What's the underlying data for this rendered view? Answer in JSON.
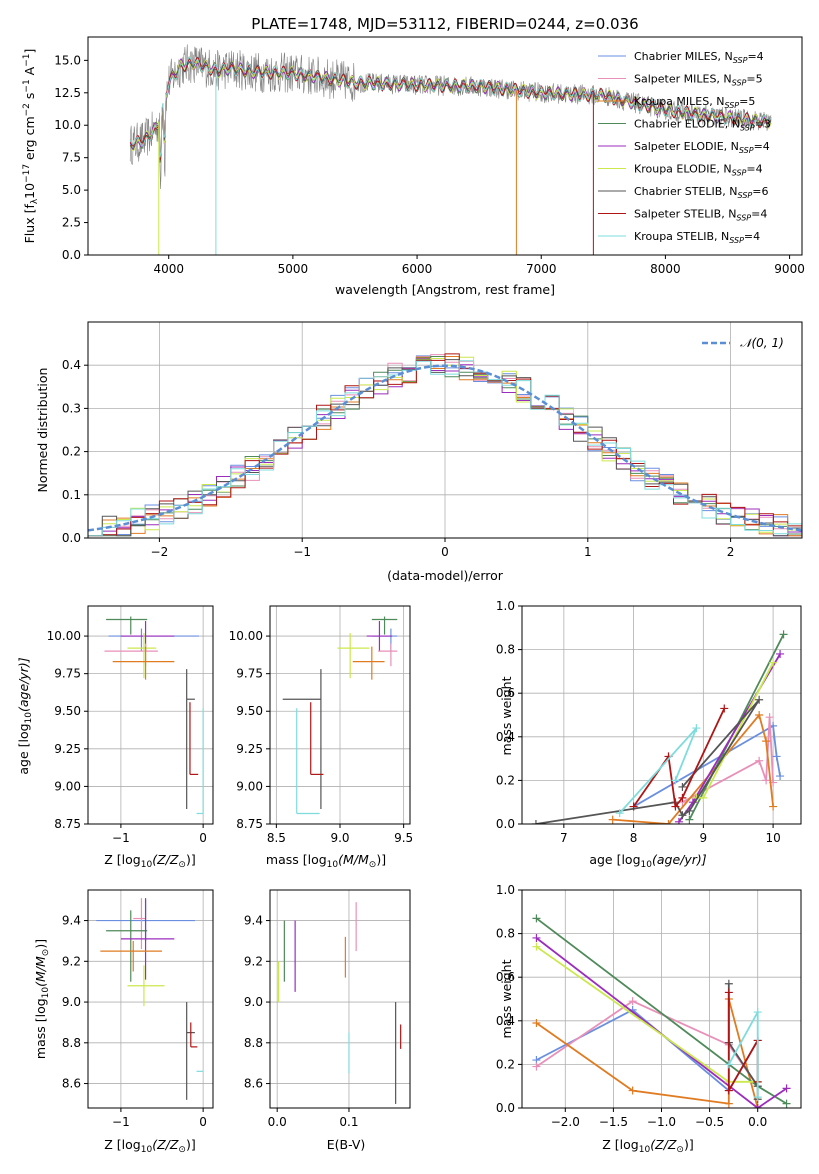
{
  "colors": {
    "chabrier_miles": "#6a8fe0",
    "salpeter_miles": "#e890b8",
    "kroupa_miles": "#e07b22",
    "chabrier_elodie": "#4f8a5a",
    "salpeter_elodie": "#9b2cbd",
    "kroupa_elodie": "#cbe84c",
    "chabrier_stelib": "#555555",
    "salpeter_stelib": "#b01515",
    "kroupa_stelib": "#7edcdc"
  },
  "legend_entries": [
    {
      "key": "chabrier_miles",
      "base": "Chabrier MILES, N",
      "sub": "SSP",
      "tail": "=4"
    },
    {
      "key": "salpeter_miles",
      "base": "Salpeter MILES, N",
      "sub": "SSP",
      "tail": "=5"
    },
    {
      "key": "kroupa_miles",
      "base": "Kroupa MILES, N",
      "sub": "SSP",
      "tail": "=5"
    },
    {
      "key": "chabrier_elodie",
      "base": "Chabrier ELODIE, N",
      "sub": "SSP",
      "tail": "=3"
    },
    {
      "key": "salpeter_elodie",
      "base": "Salpeter ELODIE, N",
      "sub": "SSP",
      "tail": "=4"
    },
    {
      "key": "kroupa_elodie",
      "base": "Kroupa ELODIE, N",
      "sub": "SSP",
      "tail": "=4"
    },
    {
      "key": "chabrier_stelib",
      "base": "Chabrier STELIB, N",
      "sub": "SSP",
      "tail": "=6"
    },
    {
      "key": "salpeter_stelib",
      "base": "Salpeter STELIB, N",
      "sub": "SSP",
      "tail": "=4"
    },
    {
      "key": "kroupa_stelib",
      "base": "Kroupa STELIB, N",
      "sub": "SSP",
      "tail": "=4"
    }
  ],
  "chart_data": [
    {
      "id": "spectrum",
      "type": "line",
      "title": "PLATE=1748, MJD=53112, FIBERID=0244, z=0.036",
      "xlabel": "wavelength [Angstrom, rest frame]",
      "ylabel_base": "Flux [f",
      "ylabel_sub": "λ",
      "ylabel_mid": "10",
      "ylabel_sup": "−17",
      "ylabel_tail": " erg cm",
      "ylabel_sup2": "−2",
      "ylabel_tail2": " s",
      "ylabel_sup3": "−1",
      "ylabel_tail3": " A",
      "ylabel_sup4": "−1",
      "ylabel_end": "]",
      "xlim": [
        3350,
        9100
      ],
      "ylim": [
        0,
        16.8
      ],
      "xticks": [
        "4000",
        "5000",
        "6000",
        "7000",
        "8000",
        "9000"
      ],
      "yticks": [
        "0.0",
        "2.5",
        "5.0",
        "7.5",
        "10.0",
        "12.5",
        "15.0"
      ],
      "continuum": {
        "x": [
          3690,
          3800,
          3900,
          3950,
          4000,
          4100,
          4200,
          4300,
          4400,
          4500,
          4700,
          5000,
          5500,
          6000,
          6500,
          6800,
          7000,
          7500,
          7800,
          8000,
          8200,
          8500,
          8800
        ],
        "y": [
          8.5,
          8.8,
          9.8,
          11.0,
          13.3,
          14.6,
          14.8,
          14.5,
          14.2,
          14.4,
          14.1,
          14.0,
          13.3,
          13.1,
          13.0,
          12.7,
          12.5,
          12.3,
          11.6,
          11.2,
          10.9,
          10.6,
          10.3
        ]
      }
    },
    {
      "id": "residuals",
      "type": "histogram",
      "xlabel": "(data-model)/error",
      "ylabel": "Normed distribution",
      "xlim": [
        -2.5,
        2.5
      ],
      "ylim": [
        0,
        0.5
      ],
      "xticks": [
        "−2",
        "−1",
        "0",
        "1",
        "2"
      ],
      "yticks": [
        "0.0",
        "0.1",
        "0.2",
        "0.3",
        "0.4"
      ],
      "legend": "𝒩(0, 1)"
    },
    {
      "id": "age_vs_Z",
      "type": "errorbar",
      "xlabel_base": "Z [log",
      "xlabel_sub": "10",
      "xlabel_tail": "(Z/Z",
      "xlabel_sub2": "⊙",
      "xlabel_end": ")]",
      "ylabel_base": "age  [log",
      "ylabel_sub": "10",
      "ylabel_tail": "(age/yr)]",
      "xlim": [
        -1.4,
        0.12
      ],
      "ylim": [
        8.75,
        10.2
      ],
      "xticks": [
        "−1",
        "0"
      ],
      "yticks": [
        "8.75",
        "9.00",
        "9.25",
        "9.50",
        "9.75",
        "10.00"
      ],
      "points": [
        {
          "key": "chabrier_elodie",
          "x": -0.88,
          "xerr": [
            0.3,
            0.2
          ],
          "y": 10.11,
          "yerr": [
            0.1,
            0.02
          ]
        },
        {
          "key": "chabrier_miles",
          "x": -0.75,
          "xerr": [
            0.4,
            0.7
          ],
          "y": 10.0,
          "yerr": [
            0.1,
            0.05
          ]
        },
        {
          "key": "salpeter_elodie",
          "x": -0.7,
          "xerr": [
            0.3,
            0.35
          ],
          "y": 10.0,
          "yerr": [
            0.1,
            0.1
          ]
        },
        {
          "key": "salpeter_miles",
          "x": -0.7,
          "xerr": [
            0.5,
            0.15
          ],
          "y": 9.9,
          "yerr": [
            0.1,
            0.05
          ]
        },
        {
          "key": "kroupa_elodie",
          "x": -0.72,
          "xerr": [
            0.2,
            0.15
          ],
          "y": 9.92,
          "yerr": [
            0.2,
            0.1
          ]
        },
        {
          "key": "kroupa_miles",
          "x": -0.7,
          "xerr": [
            0.4,
            0.35
          ],
          "y": 9.83,
          "yerr": [
            0.12,
            0.1
          ]
        },
        {
          "key": "chabrier_stelib",
          "x": -0.2,
          "xerr": [
            0.0,
            0.1
          ],
          "y": 9.58,
          "yerr": [
            0.73,
            0.2
          ]
        },
        {
          "key": "salpeter_stelib",
          "x": -0.16,
          "xerr": [
            0.0,
            0.1
          ],
          "y": 9.08,
          "yerr": [
            0.0,
            0.48
          ]
        },
        {
          "key": "kroupa_stelib",
          "x": 0.0,
          "xerr": [
            0.08,
            0.0
          ],
          "y": 8.82,
          "yerr": [
            0.0,
            0.7
          ]
        }
      ]
    },
    {
      "id": "age_vs_mass",
      "type": "errorbar",
      "xlabel_base": "mass [log",
      "xlabel_sub": "10",
      "xlabel_tail": "(M/M",
      "xlabel_sub2": "⊙",
      "xlabel_end": ")]",
      "xlim": [
        8.45,
        9.55
      ],
      "ylim": [
        8.75,
        10.2
      ],
      "xticks": [
        "8.5",
        "9.0",
        "9.5"
      ],
      "yticks": [
        "8.75",
        "9.00",
        "9.25",
        "9.50",
        "9.75",
        "10.00"
      ],
      "points": [
        {
          "key": "chabrier_elodie",
          "x": 9.35,
          "xerr": [
            0.1,
            0.1
          ],
          "y": 10.11,
          "yerr": [
            0.1,
            0.02
          ]
        },
        {
          "key": "chabrier_miles",
          "x": 9.4,
          "xerr": [
            0.15,
            0.05
          ],
          "y": 10.0,
          "yerr": [
            0.1,
            0.05
          ]
        },
        {
          "key": "salpeter_elodie",
          "x": 9.31,
          "xerr": [
            0.1,
            0.1
          ],
          "y": 10.0,
          "yerr": [
            0.1,
            0.1
          ]
        },
        {
          "key": "salpeter_miles",
          "x": 9.4,
          "xerr": [
            0.1,
            0.05
          ],
          "y": 9.9,
          "yerr": [
            0.1,
            0.05
          ]
        },
        {
          "key": "kroupa_elodie",
          "x": 9.08,
          "xerr": [
            0.1,
            0.15
          ],
          "y": 9.92,
          "yerr": [
            0.2,
            0.1
          ]
        },
        {
          "key": "kroupa_miles",
          "x": 9.25,
          "xerr": [
            0.15,
            0.1
          ],
          "y": 9.83,
          "yerr": [
            0.12,
            0.1
          ]
        },
        {
          "key": "chabrier_stelib",
          "x": 8.85,
          "xerr": [
            0.3,
            0.0
          ],
          "y": 9.58,
          "yerr": [
            0.73,
            0.2
          ]
        },
        {
          "key": "salpeter_stelib",
          "x": 8.77,
          "xerr": [
            0.0,
            0.1
          ],
          "y": 9.08,
          "yerr": [
            0.0,
            0.48
          ]
        },
        {
          "key": "kroupa_stelib",
          "x": 8.66,
          "xerr": [
            0.0,
            0.18
          ],
          "y": 8.82,
          "yerr": [
            0.0,
            0.7
          ]
        }
      ]
    },
    {
      "id": "weight_vs_age",
      "type": "line",
      "xlabel_base": "age  [log",
      "xlabel_sub": "10",
      "xlabel_tail": "(age/yr)]",
      "ylabel": "mass weight",
      "xlim": [
        6.4,
        10.4
      ],
      "ylim": [
        0,
        1.0
      ],
      "xticks": [
        "7",
        "8",
        "9",
        "10"
      ],
      "yticks": [
        "0.0",
        "0.2",
        "0.4",
        "0.6",
        "0.8",
        "1.0"
      ],
      "series": [
        {
          "key": "chabrier_miles",
          "x": [
            8.0,
            10.0,
            10.05,
            10.1
          ],
          "y": [
            0.08,
            0.45,
            0.31,
            0.22
          ]
        },
        {
          "key": "salpeter_miles",
          "x": [
            8.7,
            9.8,
            9.9,
            9.95,
            10.0
          ],
          "y": [
            0.1,
            0.29,
            0.2,
            0.49,
            0.19
          ]
        },
        {
          "key": "kroupa_miles",
          "x": [
            7.7,
            8.5,
            9.8,
            9.9,
            10.0
          ],
          "y": [
            0.02,
            0.0,
            0.5,
            0.38,
            0.08
          ]
        },
        {
          "key": "chabrier_elodie",
          "x": [
            8.8,
            10.15
          ],
          "y": [
            0.02,
            0.87
          ]
        },
        {
          "key": "salpeter_elodie",
          "x": [
            8.65,
            8.85,
            10.1
          ],
          "y": [
            0.01,
            0.1,
            0.78
          ]
        },
        {
          "key": "kroupa_elodie",
          "x": [
            8.9,
            9.0,
            10.0
          ],
          "y": [
            0.12,
            0.12,
            0.74
          ]
        },
        {
          "key": "chabrier_stelib",
          "x": [
            6.6,
            8.6,
            8.7,
            8.8,
            9.8,
            8.7
          ],
          "y": [
            0.0,
            0.1,
            0.04,
            0.06,
            0.57,
            0.17
          ]
        },
        {
          "key": "salpeter_stelib",
          "x": [
            8.0,
            8.5,
            8.6,
            8.7,
            9.3
          ],
          "y": [
            0.08,
            0.31,
            0.08,
            0.12,
            0.53
          ]
        },
        {
          "key": "kroupa_stelib",
          "x": [
            7.8,
            8.9,
            8.6
          ],
          "y": [
            0.05,
            0.44,
            0.2
          ]
        }
      ]
    },
    {
      "id": "mass_vs_Z",
      "type": "errorbar",
      "xlabel_base": "Z [log",
      "xlabel_sub": "10",
      "xlabel_tail": "(Z/Z",
      "xlabel_sub2": "⊙",
      "xlabel_end": ")]",
      "ylabel_base": "mass [log",
      "ylabel_sub": "10",
      "ylabel_tail": "(M/M",
      "ylabel_sub2": "⊙",
      "ylabel_end": ")]",
      "xlim": [
        -1.4,
        0.12
      ],
      "ylim": [
        8.48,
        9.55
      ],
      "xticks": [
        "−1",
        "0"
      ],
      "yticks": [
        "8.6",
        "8.8",
        "9.0",
        "9.2",
        "9.4"
      ],
      "points": [
        {
          "key": "chabrier_miles",
          "x": -0.7,
          "xerr": [
            0.6,
            0.6
          ],
          "y": 9.4,
          "yerr": [
            0.1,
            0.1
          ]
        },
        {
          "key": "salpeter_miles",
          "x": -0.75,
          "xerr": [
            0.1,
            0.05
          ],
          "y": 9.41,
          "yerr": [
            0.15,
            0.1
          ]
        },
        {
          "key": "chabrier_elodie",
          "x": -0.88,
          "xerr": [
            0.3,
            0.2
          ],
          "y": 9.35,
          "yerr": [
            0.25,
            0.1
          ]
        },
        {
          "key": "salpeter_elodie",
          "x": -0.7,
          "xerr": [
            0.3,
            0.35
          ],
          "y": 9.31,
          "yerr": [
            0.2,
            0.2
          ]
        },
        {
          "key": "kroupa_miles",
          "x": -0.85,
          "xerr": [
            0.4,
            0.35
          ],
          "y": 9.25,
          "yerr": [
            0.1,
            0.05
          ]
        },
        {
          "key": "kroupa_elodie",
          "x": -0.72,
          "xerr": [
            0.2,
            0.25
          ],
          "y": 9.08,
          "yerr": [
            0.1,
            0.1
          ]
        },
        {
          "key": "chabrier_stelib",
          "x": -0.2,
          "xerr": [
            0.0,
            0.1
          ],
          "y": 8.85,
          "yerr": [
            0.33,
            0.15
          ]
        },
        {
          "key": "salpeter_stelib",
          "x": -0.15,
          "xerr": [
            0.0,
            0.08
          ],
          "y": 8.78,
          "yerr": [
            0.0,
            0.12
          ]
        },
        {
          "key": "kroupa_stelib",
          "x": 0.0,
          "xerr": [
            0.08,
            0.0
          ],
          "y": 8.66,
          "yerr": [
            0.0,
            0.0
          ]
        }
      ]
    },
    {
      "id": "mass_vs_ebv",
      "type": "errorbar",
      "xlabel": "E(B-V)",
      "xlim": [
        -0.01,
        0.185
      ],
      "ylim": [
        8.48,
        9.55
      ],
      "xticks": [
        "0.0",
        "0.1"
      ],
      "yticks": [
        "8.6",
        "8.8",
        "9.0",
        "9.2",
        "9.4"
      ],
      "points": [
        {
          "key": "kroupa_elodie",
          "x": 0.002,
          "y": 9.15,
          "yerr": [
            0.15,
            0.05
          ]
        },
        {
          "key": "chabrier_elodie",
          "x": 0.01,
          "y": 9.25,
          "yerr": [
            0.15,
            0.15
          ]
        },
        {
          "key": "salpeter_elodie",
          "x": 0.025,
          "y": 9.2,
          "yerr": [
            0.15,
            0.2
          ]
        },
        {
          "key": "kroupa_miles",
          "x": 0.095,
          "y": 9.22,
          "yerr": [
            0.1,
            0.1
          ]
        },
        {
          "key": "salpeter_miles",
          "x": 0.11,
          "y": 9.37,
          "yerr": [
            0.12,
            0.12
          ]
        },
        {
          "key": "kroupa_stelib",
          "x": 0.1,
          "y": 8.75,
          "yerr": [
            0.1,
            0.1
          ]
        },
        {
          "key": "chabrier_stelib",
          "x": 0.165,
          "y": 8.75,
          "yerr": [
            0.25,
            0.25
          ]
        },
        {
          "key": "salpeter_stelib",
          "x": 0.172,
          "y": 8.83,
          "yerr": [
            0.06,
            0.06
          ]
        }
      ]
    },
    {
      "id": "weight_vs_Z",
      "type": "line",
      "xlabel_base": "Z [log",
      "xlabel_sub": "10",
      "xlabel_tail": "(Z/Z",
      "xlabel_sub2": "⊙",
      "xlabel_end": ")]",
      "ylabel": "mass weight",
      "xlim": [
        -2.45,
        0.45
      ],
      "ylim": [
        0,
        1.0
      ],
      "xticks": [
        "−2.0",
        "−1.5",
        "−1.0",
        "−0.5",
        "0.0"
      ],
      "yticks": [
        "0.0",
        "0.2",
        "0.4",
        "0.6",
        "0.8",
        "1.0"
      ],
      "series": [
        {
          "key": "chabrier_miles",
          "x": [
            -2.3,
            -1.3,
            -0.3,
            0.0
          ],
          "y": [
            0.22,
            0.45,
            0.08,
            0.31
          ]
        },
        {
          "key": "salpeter_miles",
          "x": [
            -2.3,
            -1.3,
            -0.3,
            0.0
          ],
          "y": [
            0.19,
            0.49,
            0.29,
            0.1
          ]
        },
        {
          "key": "kroupa_miles",
          "x": [
            -2.3,
            -1.3,
            -0.3,
            -0.3,
            0.0
          ],
          "y": [
            0.39,
            0.08,
            0.02,
            0.5,
            0.0
          ]
        },
        {
          "key": "chabrier_elodie",
          "x": [
            -2.3,
            0.0,
            0.3
          ],
          "y": [
            0.87,
            0.1,
            0.02
          ]
        },
        {
          "key": "salpeter_elodie",
          "x": [
            -2.3,
            0.0,
            0.3
          ],
          "y": [
            0.78,
            0.0,
            0.09
          ]
        },
        {
          "key": "kroupa_elodie",
          "x": [
            -2.3,
            -0.3,
            0.0
          ],
          "y": [
            0.74,
            0.12,
            0.12
          ]
        },
        {
          "key": "chabrier_stelib",
          "x": [
            -0.3,
            -0.3,
            0.0,
            0.0
          ],
          "y": [
            0.57,
            0.3,
            0.1,
            0.04
          ]
        },
        {
          "key": "salpeter_stelib",
          "x": [
            -0.3,
            -0.3,
            0.0,
            0.0
          ],
          "y": [
            0.53,
            0.08,
            0.31,
            0.12
          ]
        },
        {
          "key": "kroupa_stelib",
          "x": [
            -0.3,
            0.0,
            0.0
          ],
          "y": [
            0.2,
            0.44,
            0.05
          ]
        }
      ]
    }
  ]
}
